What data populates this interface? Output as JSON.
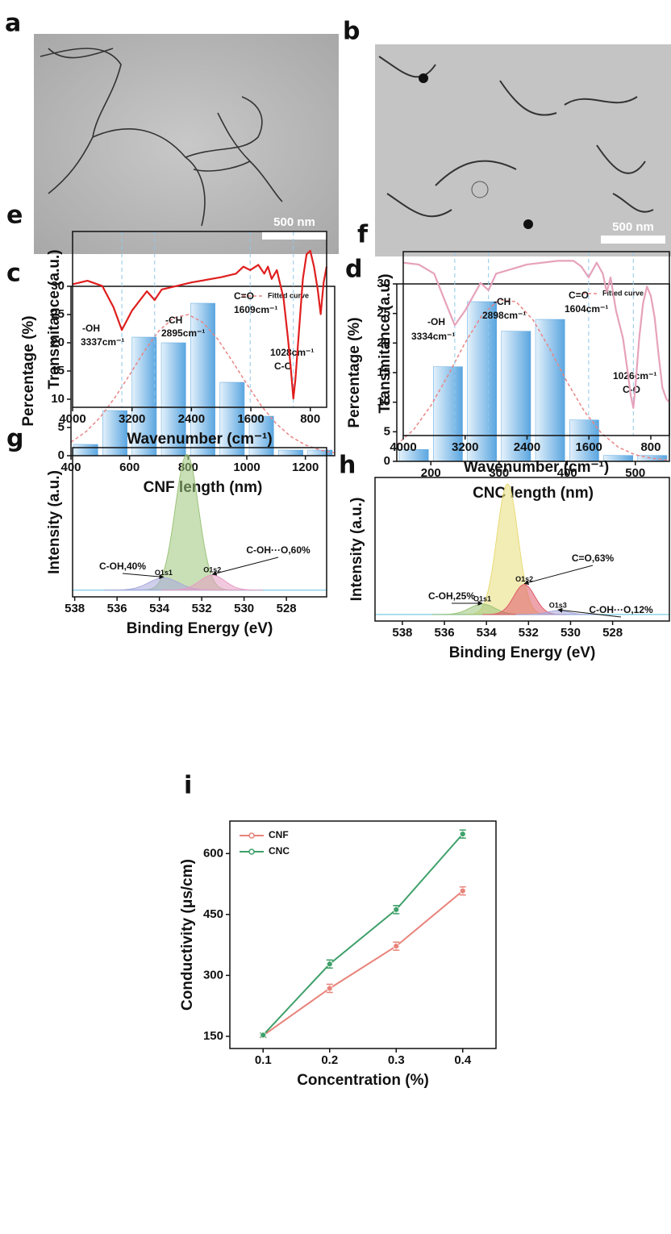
{
  "images": [
    {
      "label": "a",
      "scale_bar": "500 nm"
    },
    {
      "label": "b",
      "scale_bar": "500 nm"
    }
  ],
  "chart_data": [
    {
      "type": "histogram",
      "label": "c",
      "x_label": "CNF length (nm)",
      "y_label": "Percentage (%)",
      "bins": [
        400,
        500,
        600,
        700,
        800,
        900,
        1000,
        1100,
        1200,
        1300
      ],
      "values": [
        2,
        8,
        21,
        20,
        27,
        13,
        7,
        1,
        1
      ],
      "color": "#5aa6e0",
      "fit": {
        "name": "Fitted curve",
        "color": "#e98585",
        "x": [
          400,
          450,
          500,
          550,
          600,
          650,
          700,
          750,
          800,
          850,
          900,
          950,
          1000,
          1050,
          1100,
          1150,
          1200,
          1250,
          1300
        ],
        "values": [
          2.4,
          4.2,
          6.8,
          10.3,
          14.3,
          18.5,
          22.1,
          24.4,
          25.0,
          23.6,
          20.7,
          16.8,
          12.7,
          8.8,
          5.7,
          3.4,
          1.9,
          1.0,
          0.5
        ]
      },
      "xlim": [
        400,
        1300
      ],
      "ylim": [
        0,
        30
      ],
      "xticks": [
        400,
        600,
        800,
        1000,
        1200
      ],
      "yticks": [
        0,
        5,
        10,
        15,
        20,
        25,
        30
      ]
    },
    {
      "type": "histogram",
      "label": "d",
      "x_label": "CNC length (nm)",
      "y_label": "Percentage (%)",
      "bins": [
        150,
        200,
        250,
        300,
        350,
        400,
        450,
        500,
        550
      ],
      "values": [
        2,
        16,
        27,
        22,
        24,
        7,
        1,
        1
      ],
      "color": "#5aa6e0",
      "fit": {
        "name": "Fitted curve",
        "color": "#e98585",
        "x": [
          150,
          175,
          200,
          225,
          250,
          275,
          300,
          325,
          350,
          375,
          400,
          425,
          450,
          475,
          500,
          525,
          550
        ],
        "values": [
          2.8,
          5.4,
          9.4,
          14.5,
          20.0,
          24.7,
          27.3,
          27.0,
          23.9,
          18.9,
          13.4,
          8.5,
          4.8,
          2.4,
          1.1,
          0.5,
          0.2
        ]
      },
      "xlim": [
        150,
        550
      ],
      "ylim": [
        0,
        30
      ],
      "xticks": [
        200,
        300,
        400,
        500
      ],
      "yticks": [
        0,
        5,
        10,
        15,
        20,
        25,
        30
      ]
    },
    {
      "type": "spectrum",
      "label": "e",
      "x_label": "Wavenumber (cm⁻¹)",
      "y_label": "Transmitance (a.u.)",
      "color": "#e01e1e",
      "x": [
        4000,
        3800,
        3600,
        3450,
        3337,
        3200,
        3000,
        2895,
        2800,
        2400,
        2000,
        1800,
        1700,
        1609,
        1500,
        1420,
        1370,
        1320,
        1250,
        1160,
        1100,
        1060,
        1028,
        1000,
        960,
        900,
        850,
        800,
        750,
        700,
        660,
        620,
        580
      ],
      "values": [
        70,
        72,
        69,
        57,
        44,
        55,
        66,
        61,
        67,
        71,
        74,
        76,
        80,
        78,
        81,
        76,
        80,
        73,
        78,
        62,
        39,
        21,
        5,
        16,
        39,
        73,
        87,
        89,
        80,
        67,
        53,
        71,
        80
      ],
      "bands": [
        {
          "wavenumber": 3337,
          "group": "-OH",
          "label": "3337cm⁻¹"
        },
        {
          "wavenumber": 2895,
          "group": "-CH",
          "label": "2895cm⁻¹"
        },
        {
          "wavenumber": 1609,
          "group": "C=O",
          "label": "1609cm⁻¹"
        },
        {
          "wavenumber": 1028,
          "group": "C-O",
          "label": "1028cm⁻¹"
        }
      ],
      "xlim": [
        4000,
        580
      ],
      "ylim": [
        0,
        100
      ],
      "xticks": [
        4000,
        3200,
        2400,
        1600,
        800
      ]
    },
    {
      "type": "spectrum",
      "label": "f",
      "x_label": "Wavenumber (cm⁻¹)",
      "y_label": "Transmitance (a.u.)",
      "color": "#e6a2bb",
      "x": [
        4000,
        3800,
        3600,
        3450,
        3334,
        3200,
        3000,
        2898,
        2800,
        2400,
        2000,
        1800,
        1700,
        1604,
        1500,
        1420,
        1370,
        1320,
        1250,
        1160,
        1100,
        1060,
        1026,
        1000,
        950,
        900,
        850,
        800,
        750,
        700,
        650,
        600,
        560
      ],
      "values": [
        94,
        93,
        88,
        72,
        60,
        68,
        83,
        79,
        88,
        93,
        95,
        95,
        92,
        86,
        94,
        88,
        78,
        86,
        68,
        53,
        35,
        22,
        15,
        26,
        53,
        72,
        81,
        76,
        64,
        44,
        26,
        20,
        18
      ],
      "bands": [
        {
          "wavenumber": 3334,
          "group": "-OH",
          "label": "3334cm⁻¹"
        },
        {
          "wavenumber": 2898,
          "group": "-CH",
          "label": "2898cm⁻¹"
        },
        {
          "wavenumber": 1604,
          "group": "C=O",
          "label": "1604cm⁻¹"
        },
        {
          "wavenumber": 1026,
          "group": "C-O",
          "label": "1026cm⁻¹"
        }
      ],
      "xlim": [
        4000,
        560
      ],
      "ylim": [
        0,
        100
      ],
      "xticks": [
        4000,
        3200,
        2400,
        1600,
        800
      ]
    },
    {
      "type": "xps",
      "label": "g",
      "x_label": "Binding Energy (eV)",
      "y_label": "Intensity (a.u.)",
      "peaks": [
        {
          "center": 532.7,
          "height": 100,
          "width": 0.55,
          "color": "#9cc47a"
        },
        {
          "center": 533.8,
          "height": 9,
          "width": 0.7,
          "color": "#a8a8dc",
          "name": "O1s1",
          "annotation": "C-OH,40%"
        },
        {
          "center": 531.5,
          "height": 11,
          "width": 0.6,
          "color": "#e69cc4",
          "name": "O1s2",
          "annotation": "C-OH···O,60%"
        }
      ],
      "xlim": [
        538.1,
        526.1
      ],
      "ylim": [
        -5,
        105
      ],
      "xticks": [
        538,
        536,
        534,
        532,
        530,
        528
      ]
    },
    {
      "type": "xps",
      "label": "h",
      "x_label": "Binding Energy (eV)",
      "y_label": "Intensity (a.u.)",
      "peaks": [
        {
          "center": 533.0,
          "height": 100,
          "width": 0.5,
          "color": "#e8dc78"
        },
        {
          "center": 534.2,
          "height": 8,
          "width": 0.6,
          "color": "#9cc47a",
          "name": "O1s1",
          "annotation": "C-OH,25%"
        },
        {
          "center": 532.2,
          "height": 23,
          "width": 0.5,
          "color": "#e05a6a",
          "name": "O1s2",
          "annotation": "C=O,63%"
        },
        {
          "center": 530.6,
          "height": 3,
          "width": 0.5,
          "color": "#a8a8dc",
          "name": "O1s3",
          "annotation": "C-OH···O,12%"
        }
      ],
      "xlim": [
        539.3,
        525.3
      ],
      "ylim": [
        -5,
        105
      ],
      "xticks": [
        538,
        536,
        534,
        532,
        530,
        528
      ]
    },
    {
      "type": "line",
      "label": "i",
      "x_label": "Concentration (%)",
      "y_label": "Conductivity (μs/cm)",
      "x": [
        0.1,
        0.2,
        0.3,
        0.4
      ],
      "series": [
        {
          "name": "CNF",
          "color": "#e8837a",
          "values": [
            152,
            268,
            372,
            508
          ],
          "errors": [
            5,
            10,
            10,
            10
          ]
        },
        {
          "name": "CNC",
          "color": "#3fa06a",
          "values": [
            153,
            328,
            462,
            648
          ],
          "errors": [
            5,
            10,
            10,
            10
          ]
        }
      ],
      "xlim": [
        0.05,
        0.45
      ],
      "ylim": [
        120,
        680
      ],
      "xticks": [
        0.1,
        0.2,
        0.3,
        0.4
      ],
      "yticks": [
        150,
        300,
        450,
        600
      ]
    }
  ]
}
